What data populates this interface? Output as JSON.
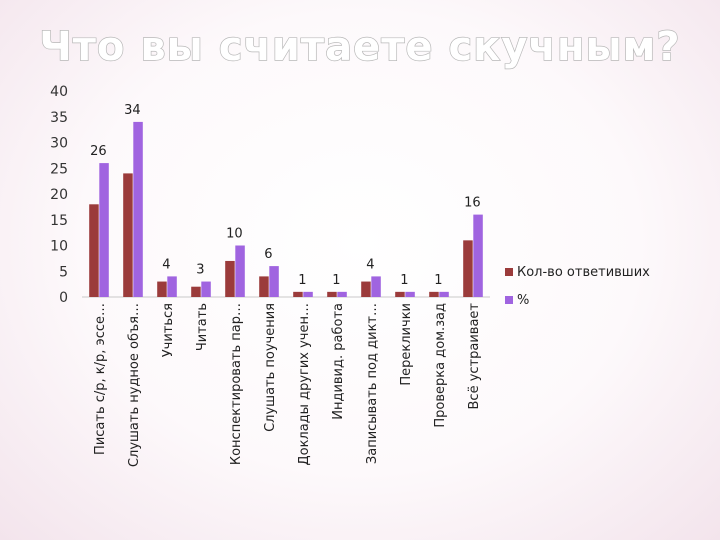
{
  "chart_data": {
    "type": "bar",
    "title": "Что вы считаете скучным?",
    "categories": [
      "Писать с/р, к/р, эссе…",
      "Слушать нудное объя…",
      "Учиться",
      "Читать",
      "Конспектировать пар…",
      "Слушать поучения",
      "Доклады других учен…",
      "Индивид. работа",
      "Записывать под дикт…",
      "Переклички",
      "Проверка дом.зад",
      "Всё устраивает"
    ],
    "series": [
      {
        "name": "Кол-во ответивших",
        "color": "#9b3b3b",
        "values": [
          18,
          24,
          3,
          2,
          7,
          4,
          1,
          1,
          3,
          1,
          1,
          11
        ]
      },
      {
        "name": "%",
        "color": "#a064e0",
        "values": [
          26,
          34,
          4,
          3,
          10,
          6,
          1,
          1,
          4,
          1,
          1,
          16
        ]
      }
    ],
    "data_labels": [
      "26",
      "34",
      "4",
      "3",
      "10",
      "6",
      "1",
      "1",
      "4",
      "1",
      "1",
      "16"
    ],
    "ylim": [
      0,
      40
    ],
    "yticks": [
      "0",
      "5",
      "10",
      "15",
      "20",
      "25",
      "30",
      "35",
      "40"
    ],
    "grid": false,
    "legend_position": "right"
  }
}
